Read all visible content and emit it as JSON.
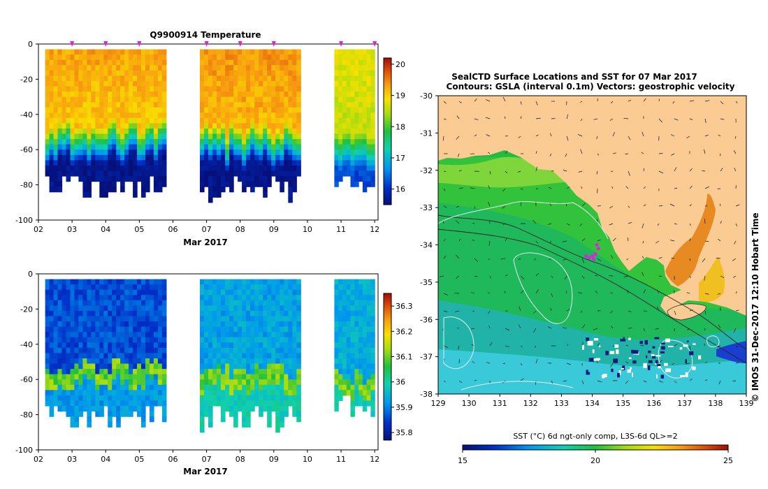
{
  "chart_data": [
    {
      "type": "heatmap",
      "title": "Q9900914  Temperature",
      "xlabel": "Mar 2017",
      "x_ticks": [
        "02",
        "03",
        "04",
        "05",
        "06",
        "07",
        "08",
        "09",
        "10",
        "11",
        "12"
      ],
      "y_ticks": [
        "0",
        "-20",
        "-40",
        "-60",
        "-80",
        "-100"
      ],
      "ylim": [
        -100,
        0
      ],
      "colorbar": {
        "ticks": [
          "16",
          "17",
          "18",
          "19",
          "20"
        ],
        "range": [
          15.5,
          20.2
        ]
      },
      "profile_markers_day": [
        3.0,
        4.0,
        5.0,
        7.0,
        8.0,
        9.0,
        11.0,
        12.0
      ],
      "profile_groups": [
        {
          "start_day": 2.2,
          "end_day": 5.8,
          "max_depth": 85,
          "surface": 19.3,
          "thermocline_depth": 55,
          "deep": 15.6
        },
        {
          "start_day": 6.8,
          "end_day": 9.8,
          "max_depth": 86,
          "surface": 19.4,
          "thermocline_depth": 57,
          "deep": 15.6
        },
        {
          "start_day": 10.8,
          "end_day": 12.0,
          "max_depth": 80,
          "surface": 18.8,
          "thermocline_depth": 62,
          "deep": 16.2
        }
      ]
    },
    {
      "type": "heatmap",
      "title": "",
      "xlabel": "Mar 2017",
      "x_ticks": [
        "02",
        "03",
        "04",
        "05",
        "06",
        "07",
        "08",
        "09",
        "10",
        "11",
        "12"
      ],
      "y_ticks": [
        "0",
        "-20",
        "-40",
        "-60",
        "-80",
        "-100"
      ],
      "ylim": [
        -100,
        0
      ],
      "colorbar": {
        "ticks": [
          "35.8",
          "35.9",
          "36",
          "36.1",
          "36.2",
          "36.3"
        ],
        "range": [
          35.77,
          36.35
        ]
      },
      "profile_groups": [
        {
          "start_day": 2.2,
          "end_day": 5.8,
          "max_depth": 85,
          "surface": 35.86,
          "thermocline_depth": 57,
          "deep": 35.92
        },
        {
          "start_day": 6.8,
          "end_day": 9.8,
          "max_depth": 86,
          "surface": 35.93,
          "thermocline_depth": 60,
          "deep": 35.99
        },
        {
          "start_day": 10.8,
          "end_day": 12.0,
          "max_depth": 80,
          "surface": 35.94,
          "thermocline_depth": 63,
          "deep": 35.99
        }
      ]
    },
    {
      "type": "heatmap",
      "title_line1": "SealCTD Surface Locations and SST for 07 Mar 2017",
      "title_line2": "Contours: GSLA (interval 0.1m)  Vectors: geostrophic velocity",
      "xlim": [
        129,
        139
      ],
      "ylim": [
        -38,
        -30
      ],
      "x_ticks": [
        "129",
        "130",
        "131",
        "132",
        "133",
        "134",
        "135",
        "136",
        "137",
        "138",
        "139"
      ],
      "y_ticks": [
        "-30",
        "-31",
        "-32",
        "-33",
        "-34",
        "-35",
        "-36",
        "-37",
        "-38"
      ],
      "side_label": "© IMOS 31-Dec-2017 12:10 Hobart Time",
      "colorbar_title": "SST (°C) 6d ngt-only comp, L3S-6d QL>=2",
      "colorbar": {
        "ticks": [
          "15",
          "20",
          "25"
        ],
        "range": [
          15,
          25
        ]
      },
      "seal_positions": [
        [
          134.0,
          -34.3
        ],
        [
          134.1,
          -34.25
        ],
        [
          134.2,
          -34.1
        ],
        [
          134.15,
          -34.0
        ],
        [
          133.9,
          -34.35
        ],
        [
          133.8,
          -34.3
        ],
        [
          134.05,
          -34.38
        ]
      ]
    }
  ]
}
